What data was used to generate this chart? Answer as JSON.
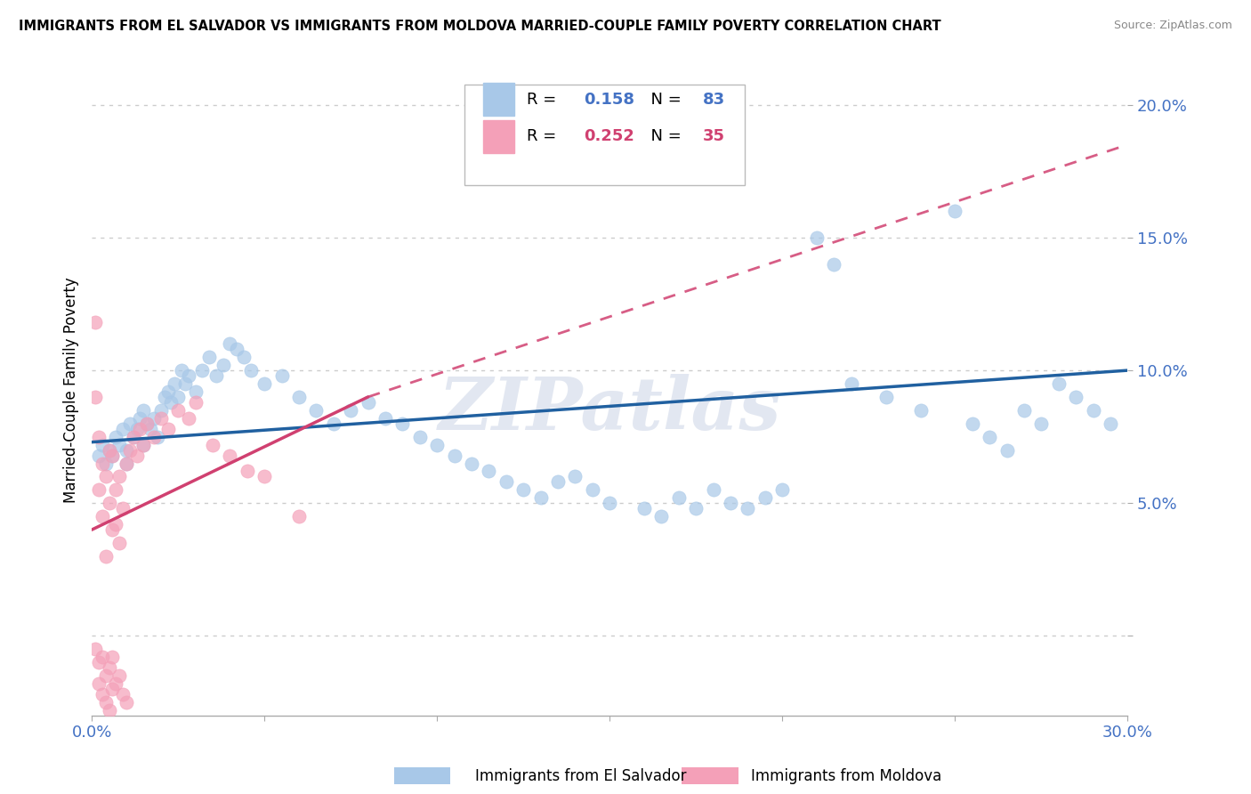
{
  "title": "IMMIGRANTS FROM EL SALVADOR VS IMMIGRANTS FROM MOLDOVA MARRIED-COUPLE FAMILY POVERTY CORRELATION CHART",
  "source": "Source: ZipAtlas.com",
  "ylabel": "Married-Couple Family Poverty",
  "xlim": [
    0.0,
    0.3
  ],
  "ylim": [
    -0.03,
    0.215
  ],
  "xticks": [
    0.0,
    0.05,
    0.1,
    0.15,
    0.2,
    0.25,
    0.3
  ],
  "yticks": [
    0.0,
    0.05,
    0.1,
    0.15,
    0.2
  ],
  "R_blue": 0.158,
  "N_blue": 83,
  "R_pink": 0.252,
  "N_pink": 35,
  "blue_color": "#a8c8e8",
  "pink_color": "#f4a0b8",
  "blue_line_color": "#2060a0",
  "pink_line_color": "#d04070",
  "watermark": "ZIPatlas",
  "blue_scatter_x": [
    0.002,
    0.003,
    0.004,
    0.005,
    0.006,
    0.007,
    0.008,
    0.009,
    0.01,
    0.01,
    0.011,
    0.012,
    0.013,
    0.014,
    0.015,
    0.015,
    0.016,
    0.017,
    0.018,
    0.019,
    0.02,
    0.021,
    0.022,
    0.023,
    0.024,
    0.025,
    0.026,
    0.027,
    0.028,
    0.03,
    0.032,
    0.034,
    0.036,
    0.038,
    0.04,
    0.042,
    0.044,
    0.046,
    0.05,
    0.055,
    0.06,
    0.065,
    0.07,
    0.075,
    0.08,
    0.085,
    0.09,
    0.095,
    0.1,
    0.105,
    0.11,
    0.115,
    0.12,
    0.125,
    0.13,
    0.135,
    0.14,
    0.145,
    0.15,
    0.16,
    0.165,
    0.17,
    0.175,
    0.18,
    0.185,
    0.19,
    0.195,
    0.2,
    0.21,
    0.215,
    0.22,
    0.23,
    0.24,
    0.25,
    0.255,
    0.26,
    0.265,
    0.27,
    0.275,
    0.28,
    0.285,
    0.29,
    0.295
  ],
  "blue_scatter_y": [
    0.068,
    0.072,
    0.065,
    0.07,
    0.068,
    0.075,
    0.072,
    0.078,
    0.07,
    0.065,
    0.08,
    0.075,
    0.078,
    0.082,
    0.085,
    0.072,
    0.08,
    0.078,
    0.082,
    0.075,
    0.085,
    0.09,
    0.092,
    0.088,
    0.095,
    0.09,
    0.1,
    0.095,
    0.098,
    0.092,
    0.1,
    0.105,
    0.098,
    0.102,
    0.11,
    0.108,
    0.105,
    0.1,
    0.095,
    0.098,
    0.09,
    0.085,
    0.08,
    0.085,
    0.088,
    0.082,
    0.08,
    0.075,
    0.072,
    0.068,
    0.065,
    0.062,
    0.058,
    0.055,
    0.052,
    0.058,
    0.06,
    0.055,
    0.05,
    0.048,
    0.045,
    0.052,
    0.048,
    0.055,
    0.05,
    0.048,
    0.052,
    0.055,
    0.15,
    0.14,
    0.095,
    0.09,
    0.085,
    0.16,
    0.08,
    0.075,
    0.07,
    0.085,
    0.08,
    0.095,
    0.09,
    0.085,
    0.08
  ],
  "pink_scatter_x": [
    0.001,
    0.001,
    0.002,
    0.002,
    0.003,
    0.003,
    0.004,
    0.004,
    0.005,
    0.005,
    0.006,
    0.006,
    0.007,
    0.007,
    0.008,
    0.008,
    0.009,
    0.01,
    0.011,
    0.012,
    0.013,
    0.014,
    0.015,
    0.016,
    0.018,
    0.02,
    0.022,
    0.025,
    0.028,
    0.03,
    0.035,
    0.04,
    0.045,
    0.05,
    0.06
  ],
  "pink_scatter_y": [
    0.118,
    0.09,
    0.075,
    0.055,
    0.065,
    0.045,
    0.06,
    0.03,
    0.07,
    0.05,
    0.04,
    0.068,
    0.055,
    0.042,
    0.06,
    0.035,
    0.048,
    0.065,
    0.07,
    0.075,
    0.068,
    0.078,
    0.072,
    0.08,
    0.075,
    0.082,
    0.078,
    0.085,
    0.082,
    0.088,
    0.072,
    0.068,
    0.062,
    0.06,
    0.045
  ],
  "pink_scatter_x_neg": [
    0.001,
    0.002,
    0.002,
    0.003,
    0.003,
    0.004,
    0.004,
    0.005,
    0.005,
    0.006,
    0.006,
    0.007,
    0.008,
    0.009,
    0.01
  ],
  "pink_scatter_y_neg": [
    -0.005,
    -0.01,
    -0.018,
    -0.008,
    -0.022,
    -0.015,
    -0.025,
    -0.012,
    -0.028,
    -0.02,
    -0.008,
    -0.018,
    -0.015,
    -0.022,
    -0.025
  ]
}
